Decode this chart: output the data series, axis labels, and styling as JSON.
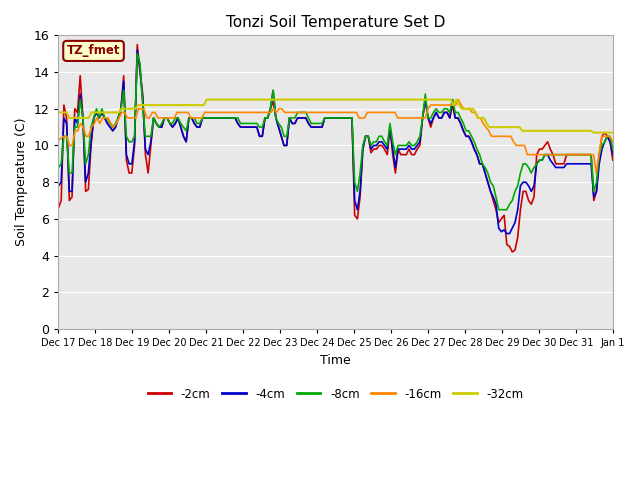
{
  "title": "Tonzi Soil Temperature Set D",
  "xlabel": "Time",
  "ylabel": "Soil Temperature (C)",
  "ylim": [
    0,
    16
  ],
  "yticks": [
    0,
    2,
    4,
    6,
    8,
    10,
    12,
    14,
    16
  ],
  "fig_facecolor": "#ffffff",
  "plot_bg_color": "#e8e8e8",
  "annotation_text": "TZ_fmet",
  "annotation_bg": "#ffffcc",
  "annotation_border": "#8b0000",
  "series": {
    "-2cm": {
      "color": "#cc0000",
      "lw": 1.2
    },
    "-4cm": {
      "color": "#0000cc",
      "lw": 1.2
    },
    "-8cm": {
      "color": "#00aa00",
      "lw": 1.2
    },
    "-16cm": {
      "color": "#ff8800",
      "lw": 1.2
    },
    "-32cm": {
      "color": "#cccc00",
      "lw": 1.5
    }
  },
  "x_labels": [
    "Dec 17",
    "Dec 18",
    "Dec 19",
    "Dec 20",
    "Dec 21",
    "Dec 22",
    "Dec 23",
    "Dec 24",
    "Dec 25",
    "Dec 26",
    "Dec 27",
    "Dec 28",
    "Dec 29",
    "Dec 30",
    "Dec 31",
    "Jan 1"
  ],
  "n_days": 15,
  "data_2cm": [
    6.6,
    7.0,
    12.2,
    11.5,
    7.0,
    7.2,
    12.0,
    11.8,
    13.8,
    11.5,
    7.5,
    7.6,
    10.0,
    11.5,
    11.8,
    11.5,
    11.8,
    11.5,
    11.2,
    11.0,
    10.8,
    11.0,
    11.5,
    12.0,
    13.8,
    9.2,
    8.5,
    8.5,
    10.0,
    15.5,
    14.0,
    12.8,
    9.5,
    8.5,
    10.0,
    11.5,
    11.2,
    11.0,
    11.0,
    11.5,
    11.5,
    11.2,
    11.0,
    11.2,
    11.5,
    11.0,
    10.5,
    10.2,
    11.5,
    11.5,
    11.2,
    11.0,
    11.0,
    11.5,
    11.5,
    11.5,
    11.5,
    11.5,
    11.5,
    11.5,
    11.5,
    11.5,
    11.5,
    11.5,
    11.5,
    11.5,
    11.2,
    11.0,
    11.0,
    11.0,
    11.0,
    11.0,
    11.0,
    11.0,
    10.5,
    10.5,
    11.5,
    11.5,
    12.0,
    12.4,
    11.5,
    11.0,
    10.5,
    10.0,
    10.0,
    11.5,
    11.2,
    11.2,
    11.5,
    11.5,
    11.5,
    11.5,
    11.2,
    11.0,
    11.0,
    11.0,
    11.0,
    11.0,
    11.5,
    11.5,
    11.5,
    11.5,
    11.5,
    11.5,
    11.5,
    11.5,
    11.5,
    11.5,
    11.5,
    6.2,
    6.0,
    7.2,
    9.8,
    10.5,
    10.5,
    9.6,
    9.8,
    9.8,
    10.0,
    10.0,
    9.8,
    9.5,
    11.0,
    9.5,
    8.5,
    9.8,
    9.5,
    9.5,
    9.5,
    9.8,
    9.5,
    9.5,
    9.8,
    10.0,
    11.5,
    12.5,
    11.5,
    11.0,
    11.5,
    11.8,
    11.5,
    11.5,
    11.8,
    11.8,
    11.5,
    12.2,
    11.5,
    11.5,
    11.2,
    10.8,
    10.5,
    10.5,
    10.2,
    9.8,
    9.5,
    9.0,
    9.0,
    8.5,
    8.0,
    7.5,
    7.0,
    6.5,
    5.8,
    6.0,
    6.2,
    4.6,
    4.5,
    4.2,
    4.3,
    5.0,
    6.5,
    7.5,
    7.5,
    7.0,
    6.8,
    7.2,
    9.5,
    9.8,
    9.8,
    10.0,
    10.2,
    9.8,
    9.5,
    9.0,
    9.0,
    9.0,
    9.0,
    9.5,
    9.5,
    9.5,
    9.5,
    9.5,
    9.5,
    9.5,
    9.5,
    9.5,
    9.5,
    7.0,
    7.5,
    9.5,
    10.5,
    10.7,
    10.5,
    10.2,
    9.2
  ],
  "data_4cm": [
    7.8,
    8.0,
    11.5,
    11.2,
    7.5,
    7.5,
    11.5,
    11.2,
    12.8,
    11.5,
    8.0,
    8.5,
    10.2,
    11.5,
    11.8,
    11.5,
    11.8,
    11.5,
    11.2,
    11.0,
    10.8,
    11.0,
    11.5,
    12.0,
    13.5,
    9.5,
    9.0,
    9.0,
    10.2,
    15.2,
    14.2,
    12.5,
    9.8,
    9.5,
    10.2,
    11.5,
    11.2,
    11.0,
    11.0,
    11.5,
    11.5,
    11.2,
    11.0,
    11.2,
    11.5,
    11.0,
    10.5,
    10.2,
    11.5,
    11.5,
    11.2,
    11.0,
    11.0,
    11.5,
    11.5,
    11.5,
    11.5,
    11.5,
    11.5,
    11.5,
    11.5,
    11.5,
    11.5,
    11.5,
    11.5,
    11.5,
    11.2,
    11.0,
    11.0,
    11.0,
    11.0,
    11.0,
    11.0,
    11.0,
    10.5,
    10.5,
    11.5,
    11.5,
    12.0,
    13.0,
    11.5,
    11.0,
    10.5,
    10.0,
    10.0,
    11.5,
    11.2,
    11.2,
    11.5,
    11.5,
    11.5,
    11.5,
    11.2,
    11.0,
    11.0,
    11.0,
    11.0,
    11.0,
    11.5,
    11.5,
    11.5,
    11.5,
    11.5,
    11.5,
    11.5,
    11.5,
    11.5,
    11.5,
    11.5,
    7.0,
    6.5,
    7.5,
    9.8,
    10.5,
    10.5,
    9.8,
    10.0,
    10.0,
    10.2,
    10.2,
    10.0,
    9.8,
    11.0,
    9.8,
    8.8,
    9.8,
    9.8,
    9.8,
    9.8,
    10.0,
    9.8,
    9.8,
    10.0,
    10.2,
    11.5,
    12.5,
    11.5,
    11.2,
    11.5,
    11.8,
    11.5,
    11.5,
    11.8,
    11.8,
    11.5,
    12.5,
    11.5,
    11.5,
    11.2,
    10.8,
    10.5,
    10.5,
    10.2,
    9.8,
    9.5,
    9.0,
    9.0,
    8.5,
    8.0,
    7.5,
    7.2,
    6.8,
    5.5,
    5.3,
    5.4,
    5.2,
    5.2,
    5.5,
    5.8,
    6.5,
    7.8,
    8.0,
    8.0,
    7.8,
    7.5,
    7.8,
    9.0,
    9.2,
    9.2,
    9.5,
    9.5,
    9.2,
    9.0,
    8.8,
    8.8,
    8.8,
    8.8,
    9.0,
    9.0,
    9.0,
    9.0,
    9.0,
    9.0,
    9.0,
    9.0,
    9.0,
    9.0,
    7.2,
    7.5,
    9.0,
    9.8,
    10.2,
    10.5,
    10.2,
    9.5
  ],
  "data_8cm": [
    8.8,
    9.0,
    10.5,
    10.5,
    8.5,
    8.5,
    11.0,
    11.0,
    12.5,
    11.5,
    9.0,
    9.5,
    11.0,
    11.5,
    12.0,
    11.5,
    12.0,
    11.5,
    11.5,
    11.2,
    11.0,
    11.2,
    11.5,
    12.0,
    13.0,
    10.5,
    10.2,
    10.2,
    10.5,
    15.0,
    14.5,
    12.2,
    10.5,
    10.5,
    10.5,
    11.5,
    11.2,
    11.0,
    11.2,
    11.5,
    11.5,
    11.2,
    11.2,
    11.5,
    11.5,
    11.2,
    11.0,
    10.8,
    11.5,
    11.5,
    11.5,
    11.2,
    11.2,
    11.5,
    11.5,
    11.5,
    11.5,
    11.5,
    11.5,
    11.5,
    11.5,
    11.5,
    11.5,
    11.5,
    11.5,
    11.5,
    11.5,
    11.2,
    11.2,
    11.2,
    11.2,
    11.2,
    11.2,
    11.2,
    11.0,
    11.0,
    11.5,
    11.5,
    12.0,
    13.0,
    11.5,
    11.2,
    11.0,
    10.5,
    10.5,
    11.5,
    11.5,
    11.5,
    11.8,
    11.8,
    11.8,
    11.8,
    11.5,
    11.2,
    11.2,
    11.2,
    11.2,
    11.2,
    11.5,
    11.5,
    11.5,
    11.5,
    11.5,
    11.5,
    11.5,
    11.5,
    11.5,
    11.5,
    11.5,
    8.0,
    7.5,
    8.5,
    10.0,
    10.5,
    10.5,
    10.0,
    10.2,
    10.2,
    10.5,
    10.5,
    10.2,
    10.0,
    11.2,
    10.2,
    9.5,
    10.0,
    10.0,
    10.0,
    10.0,
    10.2,
    10.0,
    10.0,
    10.2,
    10.5,
    11.5,
    12.8,
    11.5,
    11.5,
    11.8,
    12.0,
    11.8,
    11.8,
    12.0,
    12.0,
    11.8,
    12.5,
    11.8,
    11.8,
    11.5,
    11.2,
    10.8,
    10.8,
    10.5,
    10.2,
    9.8,
    9.5,
    9.0,
    8.8,
    8.5,
    8.0,
    7.8,
    7.2,
    6.5,
    6.5,
    6.5,
    6.5,
    6.8,
    7.0,
    7.5,
    7.8,
    8.5,
    9.0,
    9.0,
    8.8,
    8.5,
    8.8,
    9.0,
    9.2,
    9.2,
    9.5,
    9.5,
    9.5,
    9.5,
    9.5,
    9.5,
    9.5,
    9.5,
    9.5,
    9.5,
    9.5,
    9.5,
    9.5,
    9.5,
    9.5,
    9.5,
    9.5,
    9.5,
    7.5,
    8.0,
    9.5,
    10.0,
    10.2,
    10.5,
    10.5,
    9.8
  ],
  "data_16cm": [
    10.3,
    10.4,
    10.5,
    10.5,
    10.0,
    10.0,
    10.8,
    10.8,
    11.2,
    11.0,
    10.5,
    10.5,
    11.0,
    11.2,
    11.5,
    11.2,
    11.5,
    11.5,
    11.5,
    11.2,
    11.0,
    11.2,
    11.5,
    11.8,
    11.8,
    11.5,
    11.5,
    11.5,
    11.5,
    12.0,
    12.0,
    12.0,
    11.5,
    11.5,
    11.8,
    11.8,
    11.5,
    11.5,
    11.5,
    11.5,
    11.5,
    11.5,
    11.5,
    11.8,
    11.8,
    11.8,
    11.8,
    11.8,
    11.5,
    11.5,
    11.5,
    11.5,
    11.5,
    11.8,
    11.8,
    11.8,
    11.8,
    11.8,
    11.8,
    11.8,
    11.8,
    11.8,
    11.8,
    11.8,
    11.8,
    11.8,
    11.8,
    11.8,
    11.8,
    11.8,
    11.8,
    11.8,
    11.8,
    11.8,
    11.8,
    11.8,
    11.8,
    11.8,
    12.0,
    11.8,
    12.0,
    12.0,
    11.8,
    11.8,
    11.8,
    11.8,
    11.8,
    11.8,
    11.8,
    11.8,
    11.8,
    11.8,
    11.8,
    11.8,
    11.8,
    11.8,
    11.8,
    11.8,
    11.8,
    11.8,
    11.8,
    11.8,
    11.8,
    11.8,
    11.8,
    11.8,
    11.8,
    11.8,
    11.8,
    11.5,
    11.5,
    11.5,
    11.8,
    11.8,
    11.8,
    11.8,
    11.8,
    11.8,
    11.8,
    11.8,
    11.8,
    11.8,
    11.8,
    11.5,
    11.5,
    11.5,
    11.5,
    11.5,
    11.5,
    11.5,
    11.5,
    11.5,
    11.5,
    11.5,
    12.0,
    12.2,
    12.2,
    12.2,
    12.2,
    12.2,
    12.2,
    12.2,
    12.2,
    12.2,
    12.2,
    12.5,
    12.2,
    12.0,
    12.0,
    12.0,
    11.8,
    11.8,
    11.5,
    11.5,
    11.2,
    11.0,
    10.8,
    10.5,
    10.5,
    10.5,
    10.5,
    10.5,
    10.5,
    10.5,
    10.5,
    10.2,
    10.0,
    10.0,
    10.0,
    10.0,
    9.5,
    9.5,
    9.5,
    9.5,
    9.5,
    9.5,
    9.5,
    9.5,
    9.5,
    9.5,
    9.5,
    9.5,
    9.5,
    9.5,
    9.5,
    9.5,
    9.5,
    9.5,
    9.5,
    9.5,
    9.5,
    9.5,
    9.5,
    9.5,
    9.5,
    8.5,
    9.5,
    10.5,
    10.5,
    10.5,
    10.5,
    10.2
  ],
  "data_32cm": [
    11.8,
    11.8,
    11.8,
    11.8,
    11.5,
    11.5,
    11.5,
    11.5,
    11.5,
    11.5,
    11.5,
    11.5,
    11.8,
    11.8,
    11.8,
    11.8,
    11.8,
    11.8,
    11.8,
    11.8,
    11.8,
    11.8,
    11.8,
    12.0,
    12.0,
    12.0,
    12.0,
    12.0,
    12.0,
    12.2,
    12.2,
    12.2,
    12.2,
    12.2,
    12.2,
    12.2,
    12.2,
    12.2,
    12.2,
    12.2,
    12.2,
    12.2,
    12.2,
    12.2,
    12.2,
    12.2,
    12.2,
    12.2,
    12.2,
    12.2,
    12.2,
    12.2,
    12.2,
    12.2,
    12.5,
    12.5,
    12.5,
    12.5,
    12.5,
    12.5,
    12.5,
    12.5,
    12.5,
    12.5,
    12.5,
    12.5,
    12.5,
    12.5,
    12.5,
    12.5,
    12.5,
    12.5,
    12.5,
    12.5,
    12.5,
    12.5,
    12.5,
    12.5,
    12.5,
    12.5,
    12.5,
    12.5,
    12.5,
    12.5,
    12.5,
    12.5,
    12.5,
    12.5,
    12.5,
    12.5,
    12.5,
    12.5,
    12.5,
    12.5,
    12.5,
    12.5,
    12.5,
    12.5,
    12.5,
    12.5,
    12.5,
    12.5,
    12.5,
    12.5,
    12.5,
    12.5,
    12.5,
    12.5,
    12.5,
    12.5,
    12.5,
    12.5,
    12.5,
    12.5,
    12.5,
    12.5,
    12.5,
    12.5,
    12.5,
    12.5,
    12.5,
    12.5,
    12.5,
    12.5,
    12.5,
    12.5,
    12.5,
    12.5,
    12.5,
    12.5,
    12.5,
    12.5,
    12.5,
    12.5,
    12.5,
    12.5,
    12.5,
    12.5,
    12.5,
    12.5,
    12.5,
    12.5,
    12.5,
    12.5,
    12.2,
    12.5,
    12.2,
    12.0,
    12.0,
    12.0,
    12.0,
    12.0,
    11.8,
    11.5,
    11.5,
    11.5,
    11.2,
    11.0,
    11.0,
    11.0,
    11.0,
    11.0,
    11.0,
    11.0,
    11.0,
    11.0,
    11.0,
    11.0,
    11.0,
    10.8,
    10.8,
    10.8,
    10.8,
    10.8,
    10.8,
    10.8,
    10.8,
    10.8,
    10.8,
    10.8,
    10.8,
    10.8,
    10.8,
    10.8,
    10.8,
    10.8,
    10.8,
    10.8,
    10.8,
    10.8,
    10.8,
    10.8,
    10.8,
    10.8,
    10.8,
    10.7,
    10.7,
    10.7,
    10.7,
    10.7,
    10.7,
    10.7,
    10.7
  ]
}
